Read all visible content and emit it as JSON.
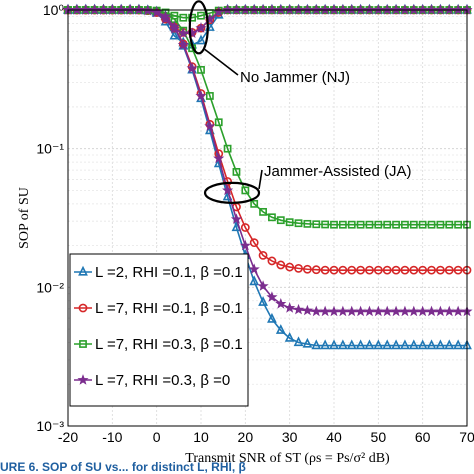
{
  "chart_data": {
    "type": "line",
    "xlabel": "Transmit SNR of ST (ρs = Ps/σ² dB)",
    "ylabel": "SOP of SU",
    "xlim": [
      -20,
      70
    ],
    "ylim": [
      0.001,
      1
    ],
    "yscale": "log",
    "grid": true,
    "legend_position": "lower-left",
    "x_ticks": [
      "-20",
      "-10",
      "0",
      "10",
      "20",
      "30",
      "40",
      "50",
      "60",
      "70"
    ],
    "y_ticks": [
      {
        "value": 1,
        "label": "10⁰"
      },
      {
        "value": 0.1,
        "label": "10⁻¹"
      },
      {
        "value": 0.01,
        "label": "10⁻²"
      },
      {
        "value": 0.001,
        "label": "10⁻³"
      }
    ],
    "x": [
      -20,
      -18,
      -16,
      -14,
      -12,
      -10,
      -8,
      -6,
      -4,
      -2,
      0,
      2,
      4,
      6,
      8,
      10,
      12,
      14,
      16,
      18,
      20,
      22,
      24,
      26,
      28,
      30,
      32,
      34,
      36,
      38,
      40,
      42,
      44,
      46,
      48,
      50,
      52,
      54,
      56,
      58,
      60,
      62,
      64,
      66,
      68,
      70
    ],
    "series": [
      {
        "name": "L =2, RHI =0.1, β =0.1",
        "color": "#1f77b4",
        "marker": "triangle",
        "jammer_values": [
          1,
          1,
          1,
          1,
          1,
          1,
          1,
          1,
          1,
          0.99,
          0.97,
          0.9,
          0.75,
          0.55,
          0.37,
          0.23,
          0.135,
          0.078,
          0.045,
          0.027,
          0.017,
          0.011,
          0.0078,
          0.0059,
          0.0049,
          0.0043,
          0.004,
          0.0039,
          0.0038,
          0.0038,
          0.0038,
          0.0038,
          0.0038,
          0.0038,
          0.0038,
          0.0038,
          0.0038,
          0.0038,
          0.0038,
          0.0038,
          0.0038,
          0.0038,
          0.0038,
          0.0038,
          0.0038,
          0.0038
        ],
        "no_jammer_values": [
          1,
          1,
          1,
          1,
          1,
          1,
          1,
          1,
          1,
          0.99,
          0.95,
          0.82,
          0.65,
          0.58,
          0.56,
          0.6,
          0.75,
          0.92,
          1,
          1,
          1,
          1,
          1,
          1,
          1,
          1,
          1,
          1,
          1,
          1,
          1,
          1,
          1,
          1,
          1,
          1,
          1,
          1,
          1,
          1,
          1,
          1,
          1,
          1,
          1,
          1
        ]
      },
      {
        "name": "L =7, RHI =0.1, β =0.1",
        "color": "#d62728",
        "marker": "circle",
        "jammer_values": [
          1,
          1,
          1,
          1,
          1,
          1,
          1,
          1,
          1,
          0.99,
          0.97,
          0.9,
          0.76,
          0.57,
          0.39,
          0.25,
          0.15,
          0.092,
          0.058,
          0.038,
          0.027,
          0.021,
          0.017,
          0.0155,
          0.0145,
          0.014,
          0.0137,
          0.0135,
          0.0134,
          0.0133,
          0.0133,
          0.0133,
          0.0133,
          0.0133,
          0.0133,
          0.0133,
          0.0133,
          0.0133,
          0.0133,
          0.0133,
          0.0133,
          0.0133,
          0.0133,
          0.0133,
          0.0133,
          0.0133
        ],
        "no_jammer_values": [
          1,
          1,
          1,
          1,
          1,
          1,
          1,
          1,
          1,
          0.99,
          0.96,
          0.86,
          0.74,
          0.69,
          0.69,
          0.74,
          0.85,
          0.96,
          1,
          1,
          1,
          1,
          1,
          1,
          1,
          1,
          1,
          1,
          1,
          1,
          1,
          1,
          1,
          1,
          1,
          1,
          1,
          1,
          1,
          1,
          1,
          1,
          1,
          1,
          1,
          1
        ]
      },
      {
        "name": "L =7, RHI =0.3, β =0.1",
        "color": "#2ca02c",
        "marker": "square",
        "jammer_values": [
          1,
          1,
          1,
          1,
          1,
          1,
          1,
          1,
          1,
          0.99,
          0.98,
          0.95,
          0.86,
          0.71,
          0.53,
          0.37,
          0.24,
          0.155,
          0.1,
          0.068,
          0.05,
          0.04,
          0.035,
          0.032,
          0.0305,
          0.0295,
          0.029,
          0.0287,
          0.0285,
          0.0284,
          0.0283,
          0.0283,
          0.0283,
          0.0283,
          0.0283,
          0.0283,
          0.0283,
          0.0283,
          0.0283,
          0.0283,
          0.0283,
          0.0283,
          0.0283,
          0.0283,
          0.0283,
          0.0283
        ],
        "no_jammer_values": [
          1,
          1,
          1,
          1,
          1,
          1,
          1,
          1,
          1,
          1,
          0.99,
          0.96,
          0.91,
          0.88,
          0.88,
          0.91,
          0.95,
          0.99,
          1,
          1,
          1,
          1,
          1,
          1,
          1,
          1,
          1,
          1,
          1,
          1,
          1,
          1,
          1,
          1,
          1,
          1,
          1,
          1,
          1,
          1,
          1,
          1,
          1,
          1,
          1,
          1
        ]
      },
      {
        "name": "L =7, RHI =0.3, β =0",
        "color": "#7b2d8e",
        "marker": "star",
        "jammer_values": [
          1,
          1,
          1,
          1,
          1,
          1,
          1,
          1,
          1,
          0.99,
          0.97,
          0.9,
          0.76,
          0.56,
          0.38,
          0.24,
          0.145,
          0.085,
          0.05,
          0.031,
          0.02,
          0.0135,
          0.0102,
          0.0085,
          0.0076,
          0.0071,
          0.0069,
          0.0068,
          0.0067,
          0.0067,
          0.0067,
          0.0067,
          0.0067,
          0.0067,
          0.0067,
          0.0067,
          0.0067,
          0.0067,
          0.0067,
          0.0067,
          0.0067,
          0.0067,
          0.0067,
          0.0067,
          0.0067,
          0.0067
        ],
        "no_jammer_values": [
          1,
          1,
          1,
          1,
          1,
          1,
          1,
          1,
          1,
          0.99,
          0.96,
          0.86,
          0.73,
          0.68,
          0.68,
          0.74,
          0.86,
          0.97,
          1,
          1,
          1,
          1,
          1,
          1,
          1,
          1,
          1,
          1,
          1,
          1,
          1,
          1,
          1,
          1,
          1,
          1,
          1,
          1,
          1,
          1,
          1,
          1,
          1,
          1,
          1,
          1
        ]
      }
    ],
    "annotations": [
      {
        "text": "No Jammer (NJ)",
        "ellipse_center": {
          "x": 9.5,
          "y": 0.75
        }
      },
      {
        "text": "Jammer-Assisted (JA)",
        "ellipse_center": {
          "x": 17,
          "y": 0.048
        }
      }
    ]
  },
  "caption": "URE 6. SOP of SU vs... for distinct L, RHI, β"
}
